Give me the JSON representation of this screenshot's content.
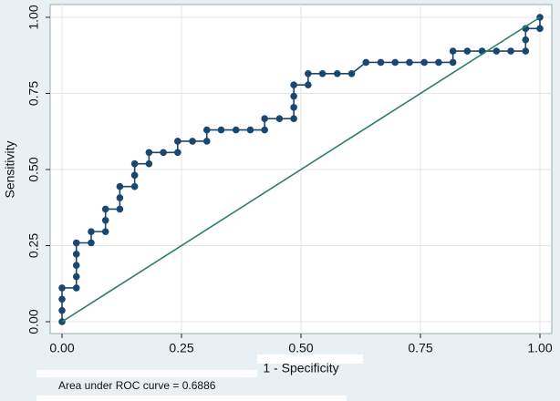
{
  "chart_data": {
    "type": "line",
    "x_label": "1 - Specificity",
    "y_label": "Sensitivity",
    "note": "Area under ROC curve = 0.6886",
    "xlim": [
      0,
      1
    ],
    "ylim": [
      0,
      1
    ],
    "xticks": [
      {
        "value": 0,
        "label": "0.00"
      },
      {
        "value": 0.25,
        "label": "0.25"
      },
      {
        "value": 0.5,
        "label": "0.50"
      },
      {
        "value": 0.75,
        "label": "0.75"
      },
      {
        "value": 1,
        "label": "1.00"
      }
    ],
    "yticks": [
      {
        "value": 0,
        "label": "0.00"
      },
      {
        "value": 0.25,
        "label": "0.25"
      },
      {
        "value": 0.5,
        "label": "0.50"
      },
      {
        "value": 0.75,
        "label": "0.75"
      },
      {
        "value": 1,
        "label": "1.00"
      }
    ],
    "grid": true,
    "series": [
      {
        "color": "#1a476f",
        "markers": true,
        "x": [
          0,
          0,
          0,
          0,
          0.03,
          0.03,
          0.03,
          0.03,
          0.03,
          0.061,
          0.061,
          0.091,
          0.091,
          0.091,
          0.121,
          0.121,
          0.121,
          0.152,
          0.152,
          0.152,
          0.182,
          0.182,
          0.212,
          0.242,
          0.242,
          0.273,
          0.303,
          0.303,
          0.333,
          0.364,
          0.394,
          0.424,
          0.424,
          0.455,
          0.485,
          0.485,
          0.485,
          0.485,
          0.515,
          0.515,
          0.545,
          0.576,
          0.606,
          0.636,
          0.667,
          0.697,
          0.727,
          0.758,
          0.788,
          0.818,
          0.818,
          0.848,
          0.879,
          0.909,
          0.939,
          0.97,
          0.97,
          0.97,
          1,
          1
        ],
        "values": [
          0,
          0.037,
          0.074,
          0.111,
          0.111,
          0.148,
          0.185,
          0.222,
          0.259,
          0.259,
          0.296,
          0.296,
          0.333,
          0.37,
          0.37,
          0.407,
          0.444,
          0.444,
          0.481,
          0.519,
          0.519,
          0.556,
          0.556,
          0.556,
          0.593,
          0.593,
          0.593,
          0.63,
          0.63,
          0.63,
          0.63,
          0.63,
          0.667,
          0.667,
          0.667,
          0.704,
          0.741,
          0.778,
          0.778,
          0.815,
          0.815,
          0.815,
          0.815,
          0.852,
          0.852,
          0.852,
          0.852,
          0.852,
          0.852,
          0.852,
          0.889,
          0.889,
          0.889,
          0.889,
          0.889,
          0.889,
          0.926,
          0.963,
          0.963,
          1
        ]
      },
      {
        "color": "#2e7d6e",
        "markers": false,
        "x": [
          0,
          1
        ],
        "values": [
          0,
          1
        ]
      }
    ]
  }
}
